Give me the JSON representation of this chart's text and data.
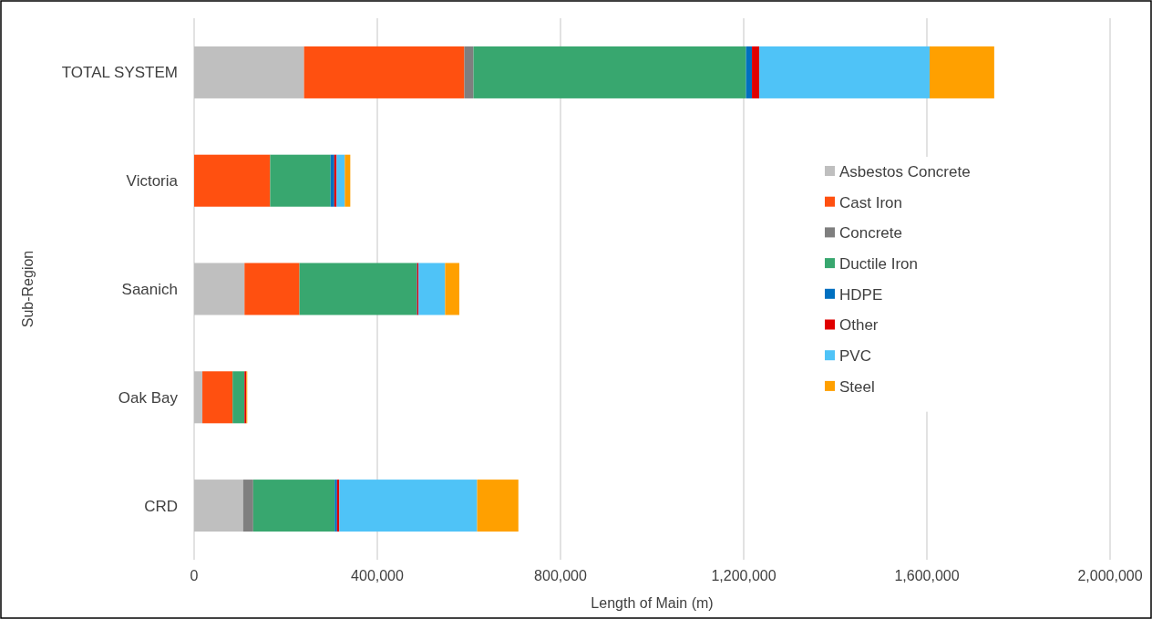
{
  "chart_data": {
    "type": "bar",
    "orientation": "horizontal",
    "stacked": true,
    "xlabel": "Length of Main (m)",
    "ylabel": "Sub-Region",
    "categories": [
      "TOTAL SYSTEM",
      "Victoria",
      "Saanich",
      "Oak Bay",
      "CRD"
    ],
    "series": [
      {
        "name": "Asbestos Concrete",
        "color": "#bfbfbf",
        "values": [
          240000,
          0,
          110000,
          18000,
          107000
        ]
      },
      {
        "name": "Cast Iron",
        "color": "#ff5010",
        "values": [
          350000,
          166000,
          120000,
          66000,
          0
        ]
      },
      {
        "name": "Concrete",
        "color": "#7f7f7f",
        "values": [
          20000,
          0,
          0,
          0,
          22000
        ]
      },
      {
        "name": "Ductile Iron",
        "color": "#38a76f",
        "values": [
          595000,
          132000,
          256000,
          26000,
          178000
        ]
      },
      {
        "name": "HDPE",
        "color": "#0070c0",
        "values": [
          13000,
          8000,
          1000,
          0,
          5000
        ]
      },
      {
        "name": "Other",
        "color": "#e00000",
        "values": [
          16000,
          5000,
          3000,
          4000,
          5000
        ]
      },
      {
        "name": "PVC",
        "color": "#4fc3f7",
        "values": [
          372000,
          18000,
          58000,
          0,
          301000
        ]
      },
      {
        "name": "Steel",
        "color": "#ffa000",
        "values": [
          141000,
          12000,
          31000,
          2000,
          90000
        ]
      }
    ],
    "xlim": [
      0,
      2000000
    ],
    "xticks": [
      {
        "value": 0,
        "label": "0"
      },
      {
        "value": 400000,
        "label": "400,000"
      },
      {
        "value": 800000,
        "label": "800,000"
      },
      {
        "value": 1200000,
        "label": "1,200,000"
      },
      {
        "value": 1600000,
        "label": "1,600,000"
      },
      {
        "value": 2000000,
        "label": "2,000,000"
      }
    ],
    "grid": "x",
    "legend": "right"
  }
}
